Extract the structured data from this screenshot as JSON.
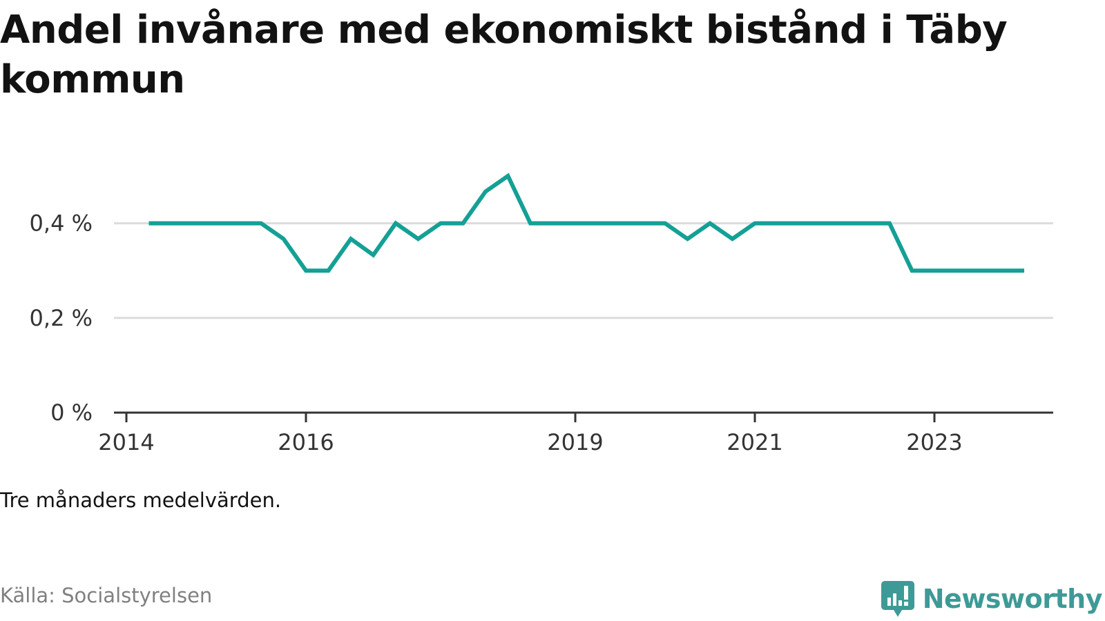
{
  "title": "Andel invånare med ekonomiskt bistånd i Täby kommun",
  "note": "Tre månaders medelvärden.",
  "source": "Källa: Socialstyrelsen",
  "brand": {
    "name": "Newsworthy",
    "icon": "newsworthy-logo-icon"
  },
  "colors": {
    "line": "#14a095",
    "grid": "#dcdcdc",
    "axis": "#333333",
    "brand": "#3e9a96"
  },
  "chart_data": {
    "type": "line",
    "title": "Andel invånare med ekonomiskt bistånd i Täby kommun",
    "xlabel": "",
    "ylabel": "",
    "ylim": [
      0,
      0.5
    ],
    "y_ticks": [
      {
        "value": 0,
        "label": "0 %"
      },
      {
        "value": 0.2,
        "label": "0,2 %"
      },
      {
        "value": 0.4,
        "label": "0,4 %"
      }
    ],
    "x_ticks": [
      {
        "value": "2014-01",
        "label": "2014"
      },
      {
        "value": "2016-01",
        "label": "2016"
      },
      {
        "value": "2019-01",
        "label": "2019"
      },
      {
        "value": "2021-01",
        "label": "2021"
      },
      {
        "value": "2023-01",
        "label": "2023"
      }
    ],
    "x_range": [
      "2014-01",
      "2024-07"
    ],
    "grid": true,
    "series": [
      {
        "x": [
          "2014-04",
          "2014-07",
          "2014-10",
          "2015-01",
          "2015-04",
          "2015-07",
          "2015-10",
          "2016-01",
          "2016-04",
          "2016-07",
          "2016-10",
          "2017-01",
          "2017-04",
          "2017-07",
          "2017-10",
          "2018-01",
          "2018-04",
          "2018-07",
          "2018-10",
          "2019-01",
          "2019-04",
          "2019-07",
          "2019-10",
          "2020-01",
          "2020-04",
          "2020-07",
          "2020-10",
          "2021-01",
          "2021-04",
          "2021-07",
          "2021-10",
          "2022-01",
          "2022-04",
          "2022-07",
          "2022-10",
          "2023-01",
          "2023-04",
          "2023-07",
          "2023-10",
          "2024-01"
        ],
        "values": [
          0.4,
          0.4,
          0.4,
          0.4,
          0.4,
          0.4,
          0.367,
          0.3,
          0.3,
          0.367,
          0.333,
          0.4,
          0.367,
          0.4,
          0.4,
          0.467,
          0.5,
          0.4,
          0.4,
          0.4,
          0.4,
          0.4,
          0.4,
          0.4,
          0.367,
          0.4,
          0.367,
          0.4,
          0.4,
          0.4,
          0.4,
          0.4,
          0.4,
          0.4,
          0.3,
          0.3,
          0.3,
          0.3,
          0.3,
          0.3
        ]
      }
    ]
  }
}
